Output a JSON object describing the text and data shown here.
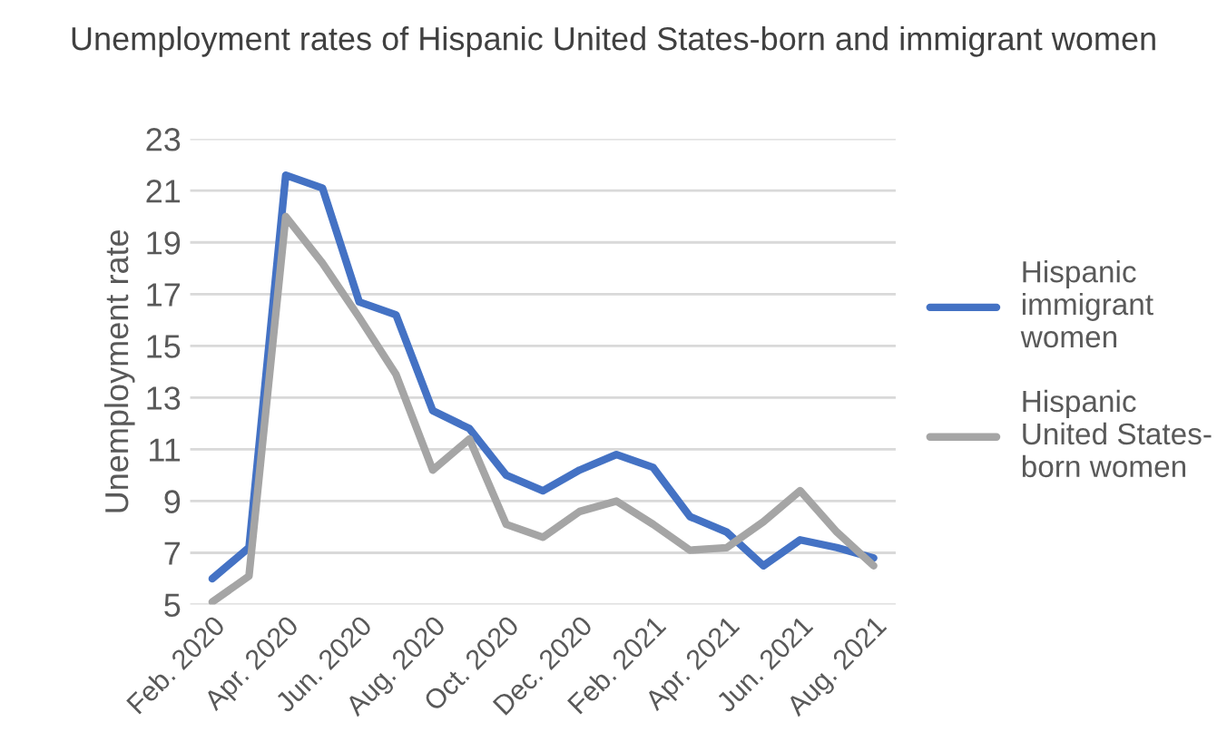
{
  "chart_data": {
    "type": "line",
    "title": "Unemployment rates of Hispanic United States-born and immigrant women",
    "ylabel": "Unemployment rate",
    "categories": [
      "Feb. 2020",
      null,
      "Apr. 2020",
      null,
      "Jun. 2020",
      null,
      "Aug. 2020",
      null,
      "Oct. 2020",
      null,
      "Dec. 2020",
      null,
      "Feb. 2021",
      null,
      "Apr. 2021",
      null,
      "Jun. 2021",
      null,
      "Aug. 2021"
    ],
    "series": [
      {
        "name": "Hispanic\nimmigrant\nwomen",
        "color": "#4472c4",
        "values": [
          6.0,
          7.2,
          21.6,
          21.1,
          16.7,
          16.2,
          12.5,
          11.8,
          10.0,
          9.4,
          10.2,
          10.8,
          10.3,
          8.4,
          7.8,
          6.5,
          7.5,
          7.2,
          6.8
        ]
      },
      {
        "name": "Hispanic\nUnited States-\nborn women",
        "color": "#a5a5a5",
        "values": [
          5.1,
          6.1,
          20.0,
          18.2,
          16.1,
          13.9,
          10.2,
          11.4,
          8.1,
          7.6,
          8.6,
          9.0,
          8.1,
          7.1,
          7.2,
          8.2,
          9.4,
          7.8,
          6.5
        ]
      }
    ],
    "ylim": [
      5,
      23
    ],
    "yticks": [
      5,
      7,
      9,
      11,
      13,
      15,
      17,
      19,
      21,
      23
    ],
    "grid": "y",
    "legend": "right",
    "marker": "none",
    "line_style": "solid"
  }
}
